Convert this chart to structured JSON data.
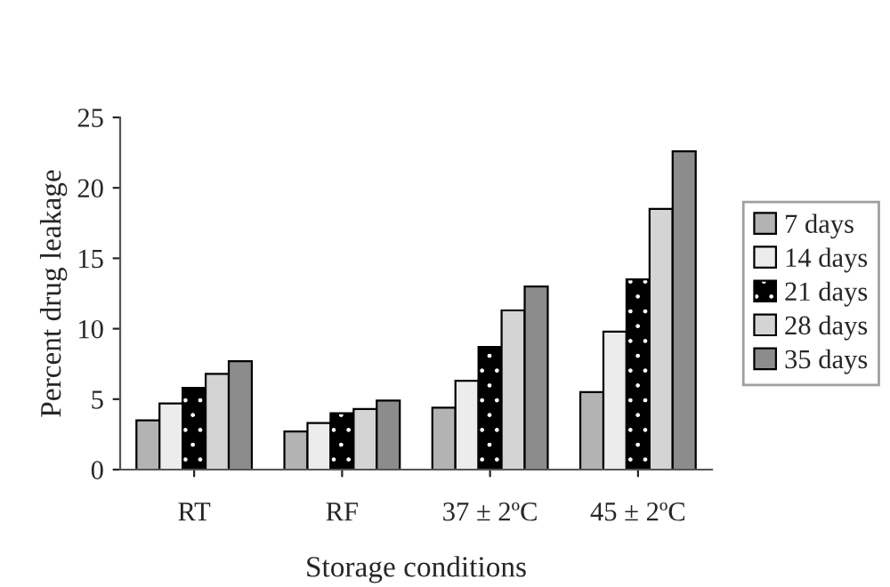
{
  "chart_data": {
    "type": "bar",
    "xlabel": "Storage conditions",
    "ylabel": "Percent drug leakage",
    "categories": [
      "RT",
      "RF",
      "37 ± 2ºC",
      "45 ± 2ºC"
    ],
    "series": [
      {
        "name": "7 days",
        "color": "#b3b3b3",
        "values": [
          3.5,
          2.7,
          4.4,
          5.5
        ]
      },
      {
        "name": "14 days",
        "color": "#ececec",
        "values": [
          4.7,
          3.3,
          6.3,
          9.8
        ]
      },
      {
        "name": "21 days",
        "color": "#000000",
        "values": [
          5.8,
          4.0,
          8.7,
          13.5
        ]
      },
      {
        "name": "28 days",
        "color": "#d4d4d4",
        "values": [
          6.8,
          4.3,
          11.3,
          18.5
        ]
      },
      {
        "name": "35 days",
        "color": "#8c8c8c",
        "values": [
          7.7,
          4.9,
          13.0,
          22.6
        ]
      }
    ],
    "ylim": [
      0,
      25
    ],
    "yticks": [
      0,
      5,
      10,
      15,
      20,
      25
    ],
    "grid": false,
    "legend": "right"
  }
}
